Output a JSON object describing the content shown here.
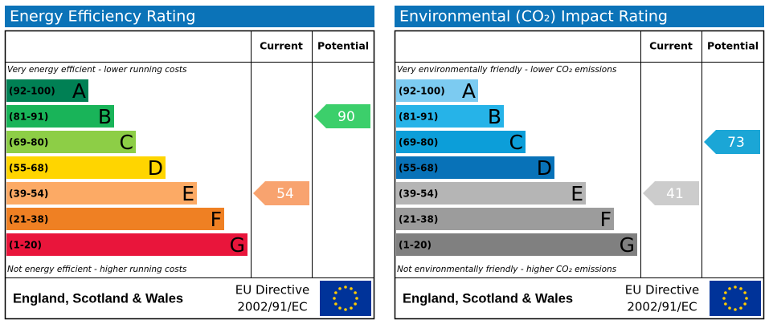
{
  "panels": [
    {
      "title": "Energy Efficiency Rating",
      "header": {
        "current": "Current",
        "potential": "Potential"
      },
      "top_note": "Very energy efficient - lower running costs",
      "bottom_note": "Not energy efficient - higher running costs",
      "bands": [
        {
          "range": "(92-100)",
          "letter": "A",
          "color": "#008054"
        },
        {
          "range": "(81-91)",
          "letter": "B",
          "color": "#19b459"
        },
        {
          "range": "(69-80)",
          "letter": "C",
          "color": "#8dce46"
        },
        {
          "range": "(55-68)",
          "letter": "D",
          "color": "#ffd500"
        },
        {
          "range": "(39-54)",
          "letter": "E",
          "color": "#fcaa65"
        },
        {
          "range": "(21-38)",
          "letter": "F",
          "color": "#ef8023"
        },
        {
          "range": "(1-20)",
          "letter": "G",
          "color": "#e9153b"
        }
      ],
      "current": {
        "value": 54,
        "color": "#f8a36f"
      },
      "potential": {
        "value": 90,
        "color": "#3ccf6b"
      },
      "footer": {
        "region": "England, Scotland & Wales",
        "directive": [
          "EU Directive",
          "2002/91/EC"
        ]
      }
    },
    {
      "title": "Environmental (CO₂) Impact Rating",
      "header": {
        "current": "Current",
        "potential": "Potential"
      },
      "top_note": "Very environmentally friendly - lower CO₂ emissions",
      "bottom_note": "Not environmentally friendly - higher CO₂ emissions",
      "bands": [
        {
          "range": "(92-100)",
          "letter": "A",
          "color": "#7ccbf1"
        },
        {
          "range": "(81-91)",
          "letter": "B",
          "color": "#26b3e8"
        },
        {
          "range": "(69-80)",
          "letter": "C",
          "color": "#0c9ed9"
        },
        {
          "range": "(55-68)",
          "letter": "D",
          "color": "#0872b8"
        },
        {
          "range": "(39-54)",
          "letter": "E",
          "color": "#b5b5b5"
        },
        {
          "range": "(21-38)",
          "letter": "F",
          "color": "#9c9c9c"
        },
        {
          "range": "(1-20)",
          "letter": "G",
          "color": "#808080"
        }
      ],
      "current": {
        "value": 41,
        "color": "#cccccc"
      },
      "potential": {
        "value": 73,
        "color": "#1ba6d6"
      },
      "footer": {
        "region": "England, Scotland & Wales",
        "directive": [
          "EU Directive",
          "2002/91/EC"
        ]
      }
    }
  ]
}
